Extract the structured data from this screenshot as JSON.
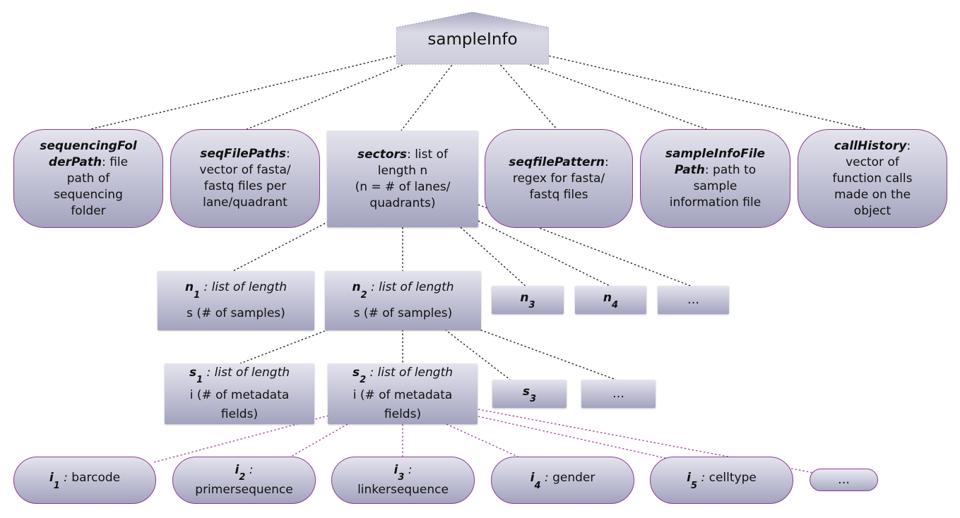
{
  "root": {
    "label": "sampleInfo"
  },
  "top_fields": [
    {
      "name": "sequencingFolderPath",
      "name_l1": "sequencingFol",
      "name_l2": "derPath",
      "desc_l2": ": file",
      "desc_l3": "path of",
      "desc_l4": "sequencing",
      "desc_l5": "folder"
    },
    {
      "name": "seqFilePaths",
      "desc_l1": ":",
      "desc_l2": "vector of fasta/",
      "desc_l3": "fastq files per",
      "desc_l4": "lane/quadrant"
    },
    {
      "name": "sectors",
      "desc_l1": ": list of",
      "desc_l2": "length n",
      "desc_l3": "(n = # of lanes/",
      "desc_l4": "quadrants)"
    },
    {
      "name": "seqfilePattern",
      "desc_l1": ":",
      "desc_l2": "regex for fasta/",
      "desc_l3": "fastq files"
    },
    {
      "name": "sampleInfoFilePath",
      "name_l1": "sampleInfoFile",
      "name_l2": "Path",
      "desc_l2": ": path to",
      "desc_l3": "sample",
      "desc_l4": "information file"
    },
    {
      "name": "callHistory",
      "desc_l1": ":",
      "desc_l2": "vector of",
      "desc_l3": "function calls",
      "desc_l4": "made on the",
      "desc_l5": "object"
    }
  ],
  "lanes": [
    {
      "letter": "n",
      "sub": "1",
      "desc_l1": " : list of length",
      "desc_l2": "s (# of samples)"
    },
    {
      "letter": "n",
      "sub": "2",
      "desc_l1": " : list of length",
      "desc_l2": "s (# of samples)"
    },
    {
      "letter": "n",
      "sub": "3"
    },
    {
      "letter": "n",
      "sub": "4"
    },
    {
      "ellipsis": "…"
    }
  ],
  "samples": [
    {
      "letter": "s",
      "sub": "1",
      "desc_l1": " : list of length",
      "desc_l2": "i (# of metadata",
      "desc_l3": "fields)"
    },
    {
      "letter": "s",
      "sub": "2",
      "desc_l1": " : list of length",
      "desc_l2": "i (# of metadata",
      "desc_l3": "fields)"
    },
    {
      "letter": "s",
      "sub": "3"
    },
    {
      "ellipsis": "…"
    }
  ],
  "metadata": [
    {
      "letter": "i",
      "sub": "1",
      "desc": "barcode"
    },
    {
      "letter": "i",
      "sub": "2",
      "desc": "primersequence"
    },
    {
      "letter": "i",
      "sub": "3",
      "desc": "linkersequence"
    },
    {
      "letter": "i",
      "sub": "4",
      "desc": "gender"
    },
    {
      "letter": "i",
      "sub": "5",
      "desc": "celltype"
    },
    {
      "ellipsis": "…"
    }
  ],
  "colors": {
    "box_fill": "#c0c0d4",
    "field_border": "#8d3a8f",
    "connector_black": "#222222",
    "connector_purple": "#a04aa0"
  }
}
